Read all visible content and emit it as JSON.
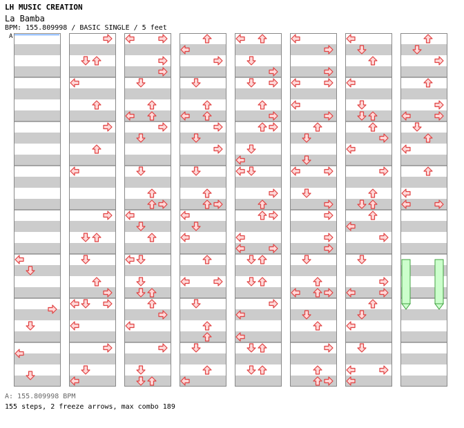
{
  "header": {
    "creator": "LH MUSIC CREATION",
    "song_title": "La Bamba",
    "info": "BPM: 155.809998 / BASIC SINGLE / 5 feet"
  },
  "bpm_marker": "A",
  "footer": {
    "bpm_line": "A: 155.809998 BPM",
    "stats": "155 steps, 2 freeze arrows, max combo 189"
  },
  "chart_data": {
    "type": "step-chart",
    "columns": 8,
    "measures_per_column": 8,
    "rows_per_measure": 8,
    "lanes": [
      "left",
      "down",
      "up",
      "right"
    ],
    "colors": {
      "arrow_fill": "#ffd8d8",
      "arrow_stroke": "#e04040",
      "freeze_fill": "#ccffcc",
      "freeze_stroke": "#40a040",
      "band": "#cccccc",
      "grid": "#888888"
    },
    "columns_data": [
      [
        [
          0,
          "left",
          320
        ],
        [
          1,
          "down",
          336
        ],
        [
          2,
          "right",
          392
        ],
        [
          3,
          "down",
          416
        ],
        [
          4,
          "left",
          456
        ],
        [
          5,
          "down",
          488
        ]
      ],
      [
        [
          0,
          "right",
          0
        ],
        [
          1,
          "down",
          32
        ],
        [
          1,
          "up",
          32
        ],
        [
          2,
          "left",
          64
        ],
        [
          3,
          "up",
          96
        ],
        [
          4,
          "right",
          128
        ],
        [
          5,
          "up",
          160
        ],
        [
          6,
          "left",
          192
        ],
        [
          7,
          "right",
          256
        ],
        [
          8,
          "down",
          288
        ],
        [
          8,
          "up",
          288
        ],
        [
          9,
          "down",
          320
        ],
        [
          10,
          "up",
          352
        ],
        [
          10,
          "right",
          368
        ],
        [
          11,
          "left",
          384
        ],
        [
          11,
          "down",
          384
        ],
        [
          11,
          "right",
          384
        ],
        [
          12,
          "left",
          416
        ],
        [
          13,
          "right",
          448
        ],
        [
          14,
          "down",
          480
        ],
        [
          15,
          "left",
          496
        ]
      ],
      [
        [
          0,
          "left",
          0
        ],
        [
          0,
          "right",
          0
        ],
        [
          1,
          "right",
          32
        ],
        [
          1,
          "right",
          48
        ],
        [
          2,
          "down",
          64
        ],
        [
          3,
          "left",
          112
        ],
        [
          3,
          "up",
          96
        ],
        [
          3,
          "up",
          112
        ],
        [
          4,
          "right",
          128
        ],
        [
          5,
          "down",
          144
        ],
        [
          6,
          "down",
          192
        ],
        [
          7,
          "up",
          224
        ],
        [
          7,
          "up",
          240
        ],
        [
          7,
          "right",
          240
        ],
        [
          8,
          "left",
          256
        ],
        [
          8,
          "down",
          272
        ],
        [
          9,
          "up",
          288
        ],
        [
          10,
          "left",
          320
        ],
        [
          10,
          "down",
          320
        ],
        [
          11,
          "down",
          352
        ],
        [
          11,
          "down",
          368
        ],
        [
          11,
          "up",
          368
        ],
        [
          12,
          "up",
          384
        ],
        [
          12,
          "right",
          400
        ],
        [
          13,
          "left",
          416
        ],
        [
          14,
          "right",
          448
        ],
        [
          15,
          "down",
          480
        ],
        [
          15,
          "down",
          496
        ],
        [
          15,
          "up",
          496
        ]
      ],
      [
        [
          0,
          "up",
          0
        ],
        [
          0,
          "left",
          16
        ],
        [
          1,
          "right",
          32
        ],
        [
          2,
          "down",
          64
        ],
        [
          3,
          "up",
          96
        ],
        [
          3,
          "left",
          112
        ],
        [
          3,
          "up",
          112
        ],
        [
          4,
          "right",
          128
        ],
        [
          5,
          "down",
          144
        ],
        [
          5,
          "right",
          160
        ],
        [
          6,
          "down",
          192
        ],
        [
          7,
          "up",
          224
        ],
        [
          7,
          "up",
          240
        ],
        [
          7,
          "right",
          240
        ],
        [
          8,
          "left",
          256
        ],
        [
          8,
          "down",
          272
        ],
        [
          9,
          "left",
          288
        ],
        [
          10,
          "up",
          320
        ],
        [
          11,
          "left",
          352
        ],
        [
          11,
          "right",
          352
        ],
        [
          12,
          "down",
          384
        ],
        [
          13,
          "up",
          416
        ],
        [
          14,
          "up",
          432
        ],
        [
          15,
          "down",
          448
        ],
        [
          15,
          "up",
          480
        ],
        [
          15,
          "left",
          496
        ]
      ],
      [
        [
          0,
          "left",
          0
        ],
        [
          0,
          "up",
          0
        ],
        [
          1,
          "down",
          32
        ],
        [
          1,
          "right",
          48
        ],
        [
          2,
          "down",
          64
        ],
        [
          2,
          "right",
          64
        ],
        [
          3,
          "up",
          96
        ],
        [
          3,
          "right",
          112
        ],
        [
          4,
          "up",
          128
        ],
        [
          4,
          "right",
          128
        ],
        [
          5,
          "down",
          160
        ],
        [
          6,
          "left",
          176
        ],
        [
          6,
          "left",
          192
        ],
        [
          6,
          "down",
          192
        ],
        [
          7,
          "right",
          224
        ],
        [
          7,
          "up",
          240
        ],
        [
          8,
          "up",
          256
        ],
        [
          8,
          "right",
          256
        ],
        [
          9,
          "left",
          288
        ],
        [
          9,
          "right",
          304
        ],
        [
          9,
          "left",
          304
        ],
        [
          10,
          "down",
          320
        ],
        [
          10,
          "up",
          320
        ],
        [
          11,
          "down",
          352
        ],
        [
          11,
          "up",
          352
        ],
        [
          11,
          "right",
          384
        ],
        [
          12,
          "left",
          400
        ],
        [
          13,
          "left",
          432
        ],
        [
          14,
          "down",
          448
        ],
        [
          14,
          "up",
          448
        ],
        [
          15,
          "down",
          480
        ],
        [
          15,
          "up",
          480
        ]
      ],
      [
        [
          0,
          "left",
          0
        ],
        [
          1,
          "right",
          16
        ],
        [
          1,
          "right",
          48
        ],
        [
          2,
          "left",
          64
        ],
        [
          2,
          "right",
          64
        ],
        [
          3,
          "left",
          96
        ],
        [
          3,
          "right",
          112
        ],
        [
          4,
          "up",
          128
        ],
        [
          5,
          "down",
          144
        ],
        [
          5,
          "down",
          176
        ],
        [
          6,
          "left",
          192
        ],
        [
          6,
          "right",
          192
        ],
        [
          7,
          "down",
          224
        ],
        [
          7,
          "right",
          240
        ],
        [
          8,
          "right",
          256
        ],
        [
          9,
          "right",
          288
        ],
        [
          9,
          "right",
          304
        ],
        [
          10,
          "down",
          320
        ],
        [
          11,
          "up",
          352
        ],
        [
          11,
          "left",
          368
        ],
        [
          11,
          "up",
          368
        ],
        [
          11,
          "right",
          368
        ],
        [
          12,
          "down",
          400
        ],
        [
          13,
          "up",
          416
        ],
        [
          14,
          "right",
          448
        ],
        [
          15,
          "up",
          480
        ],
        [
          15,
          "up",
          496
        ],
        [
          15,
          "right",
          496
        ]
      ],
      [
        [
          0,
          "left",
          0
        ],
        [
          0,
          "down",
          16
        ],
        [
          1,
          "up",
          32
        ],
        [
          2,
          "left",
          64
        ],
        [
          3,
          "down",
          96
        ],
        [
          3,
          "down",
          112
        ],
        [
          3,
          "up",
          112
        ],
        [
          4,
          "up",
          128
        ],
        [
          5,
          "right",
          144
        ],
        [
          5,
          "left",
          160
        ],
        [
          6,
          "right",
          192
        ],
        [
          7,
          "up",
          224
        ],
        [
          7,
          "down",
          240
        ],
        [
          7,
          "up",
          240
        ],
        [
          8,
          "up",
          256
        ],
        [
          9,
          "left",
          272
        ],
        [
          9,
          "right",
          288
        ],
        [
          10,
          "down",
          320
        ],
        [
          11,
          "right",
          352
        ],
        [
          11,
          "left",
          368
        ],
        [
          11,
          "right",
          368
        ],
        [
          12,
          "up",
          384
        ],
        [
          13,
          "left",
          416
        ],
        [
          13,
          "down",
          400
        ],
        [
          14,
          "down",
          448
        ],
        [
          15,
          "right",
          480
        ],
        [
          15,
          "left",
          480
        ],
        [
          15,
          "left",
          496
        ]
      ],
      [
        [
          0,
          "up",
          0
        ],
        [
          0,
          "down",
          16
        ],
        [
          1,
          "right",
          32
        ],
        [
          2,
          "up",
          64
        ],
        [
          3,
          "right",
          96
        ],
        [
          3,
          "left",
          112
        ],
        [
          3,
          "right",
          112
        ],
        [
          4,
          "down",
          128
        ],
        [
          5,
          "up",
          144
        ],
        [
          5,
          "left",
          160
        ],
        [
          6,
          "up",
          192
        ],
        [
          7,
          "left",
          224
        ],
        [
          7,
          "left",
          240
        ],
        [
          7,
          "right",
          240
        ]
      ]
    ],
    "freeze_arrows": [
      {
        "column": 7,
        "lane": "left",
        "start_offset": 320,
        "length": 64
      },
      {
        "column": 7,
        "lane": "right",
        "start_offset": 320,
        "length": 64
      }
    ]
  }
}
